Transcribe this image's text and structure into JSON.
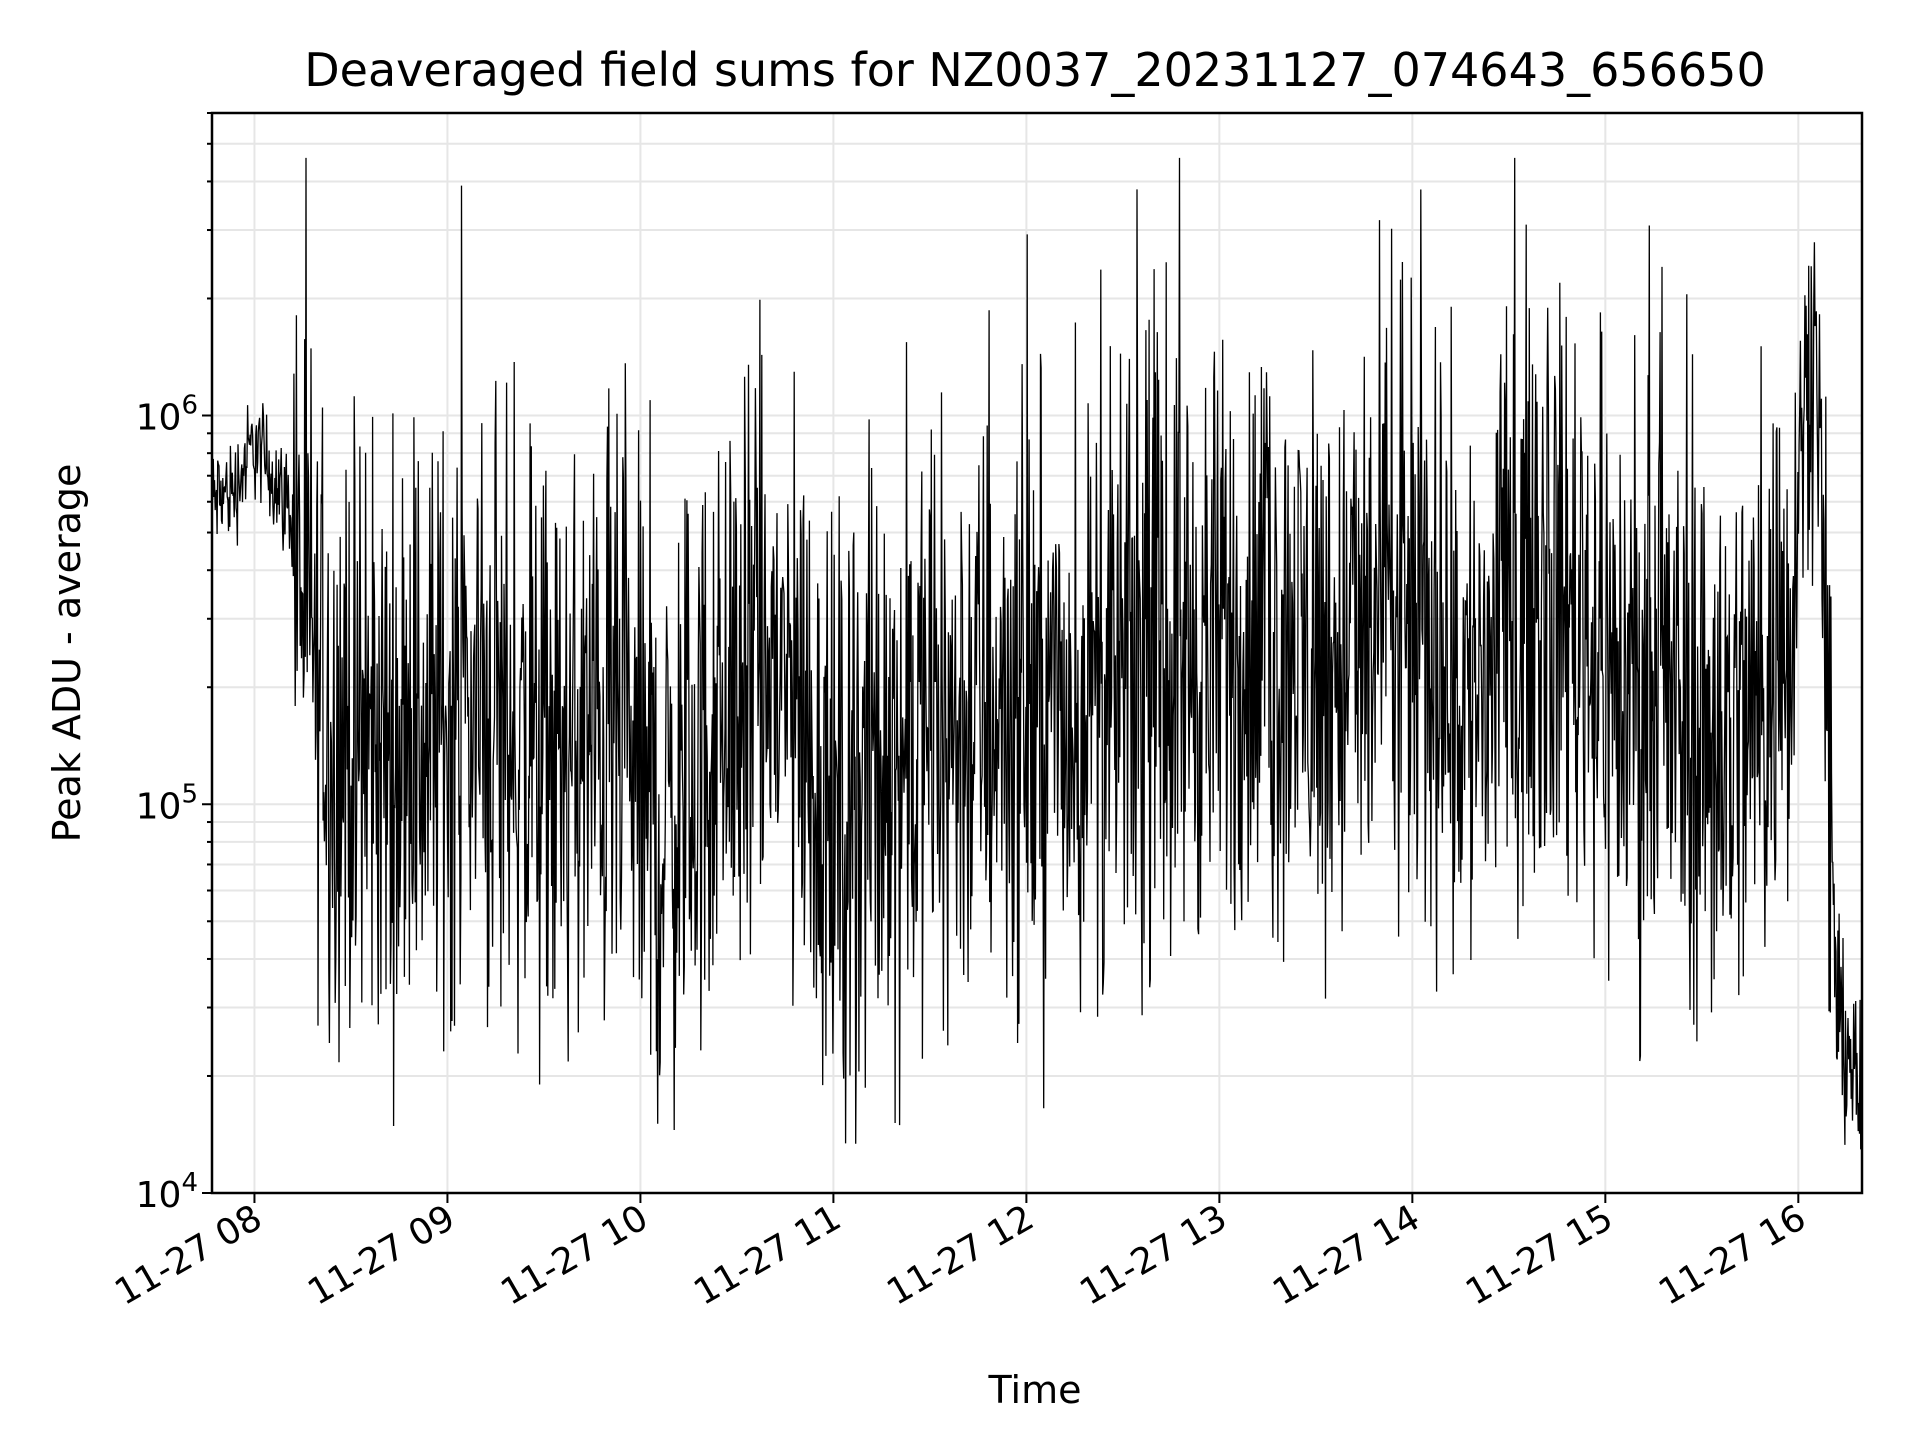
{
  "chart_data": {
    "type": "line",
    "title": "Deaveraged field sums for NZ0037_20231127_074643_656650",
    "xlabel": "Time",
    "ylabel": "Peak ADU - average",
    "x_tick_labels": [
      "11-27 08",
      "11-27 09",
      "11-27 10",
      "11-27 11",
      "11-27 12",
      "11-27 13",
      "11-27 14",
      "11-27 15",
      "11-27 16"
    ],
    "x_tick_hours": [
      8,
      9,
      10,
      11,
      12,
      13,
      14,
      15,
      16
    ],
    "xlim_hours": [
      7.78,
      16.33
    ],
    "y_scale": "log",
    "ylim": [
      10000,
      6000000
    ],
    "y_tick_labels": [
      {
        "base": "10",
        "exp": "4",
        "value": 10000
      },
      {
        "base": "10",
        "exp": "5",
        "value": 100000
      },
      {
        "base": "10",
        "exp": "6",
        "value": 1000000
      }
    ],
    "grid": true,
    "line_color": "#000000",
    "grid_color": "#e6e6e6",
    "series": [
      {
        "points_hours": [
          7.78,
          7.9,
          8.0,
          8.1,
          8.2,
          8.3,
          8.4,
          8.5,
          8.6,
          8.75,
          8.9,
          9.05,
          9.2,
          9.35,
          9.5,
          9.65,
          9.8,
          9.95,
          10.1,
          10.25,
          10.4,
          10.55,
          10.7,
          10.85,
          11.0,
          11.15,
          11.3,
          11.45,
          11.6,
          11.75,
          11.9,
          12.05,
          12.2,
          12.35,
          12.5,
          12.65,
          12.8,
          12.95,
          13.1,
          13.25,
          13.4,
          13.55,
          13.7,
          13.85,
          14.0,
          14.15,
          14.3,
          14.45,
          14.6,
          14.75,
          14.9,
          15.05,
          15.2,
          15.35,
          15.5,
          15.65,
          15.8,
          15.95,
          16.03,
          16.1,
          16.15,
          16.2,
          16.26,
          16.33
        ],
        "median_values": [
          600000,
          650000,
          850000,
          700000,
          550000,
          250000,
          150000,
          140000,
          130000,
          140000,
          150000,
          180000,
          170000,
          140000,
          120000,
          130000,
          150000,
          130000,
          80000,
          110000,
          150000,
          200000,
          220000,
          160000,
          80000,
          110000,
          130000,
          140000,
          150000,
          170000,
          180000,
          170000,
          160000,
          170000,
          200000,
          230000,
          250000,
          240000,
          260000,
          250000,
          240000,
          230000,
          250000,
          280000,
          260000,
          250000,
          180000,
          250000,
          380000,
          350000,
          300000,
          200000,
          180000,
          170000,
          150000,
          150000,
          180000,
          300000,
          1200000,
          1400000,
          200000,
          28000,
          25000,
          15000
        ]
      }
    ]
  }
}
